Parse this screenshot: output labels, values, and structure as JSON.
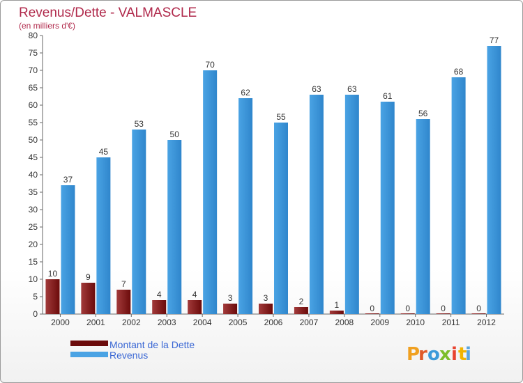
{
  "header": {
    "title": "Revenus/Dette - VALMASCLE",
    "subtitle": "(en milliers d'€)"
  },
  "legend": {
    "items": [
      {
        "label": "Montant de la Dette",
        "color": "#6b0b0b"
      },
      {
        "label": "Revenus",
        "color": "#4aa3e4"
      }
    ]
  },
  "brand": {
    "letters": [
      "P",
      "r",
      "o",
      "x",
      "i",
      "t",
      "i"
    ],
    "colors": [
      "#f0a020",
      "#e05a28",
      "#3d9ad9",
      "#7cbd2a",
      "#e8432f",
      "#f2b400",
      "#5aa5df"
    ]
  },
  "colors": {
    "debt": "#6b0b0b",
    "debt_light": "#a23a3a",
    "revenue": "#4aa3e4",
    "revenue_dark": "#2f86cc",
    "grid": "#c8c8c8",
    "axis": "#666666"
  },
  "chart_data": {
    "type": "bar",
    "categories": [
      "2000",
      "2001",
      "2002",
      "2003",
      "2004",
      "2005",
      "2006",
      "2007",
      "2008",
      "2009",
      "2010",
      "2011",
      "2012"
    ],
    "series": [
      {
        "name": "Montant de la Dette",
        "values": [
          10,
          9,
          7,
          4,
          4,
          3,
          3,
          2,
          1,
          0,
          0,
          0,
          0
        ]
      },
      {
        "name": "Revenus",
        "values": [
          37,
          45,
          53,
          50,
          70,
          62,
          55,
          63,
          63,
          61,
          56,
          68,
          77
        ]
      }
    ],
    "ylim": [
      0,
      80
    ],
    "yticks": [
      0,
      5,
      10,
      15,
      20,
      25,
      30,
      35,
      40,
      45,
      50,
      55,
      60,
      65,
      70,
      75,
      80
    ],
    "grid": false,
    "legend_position": "bottom-left"
  }
}
